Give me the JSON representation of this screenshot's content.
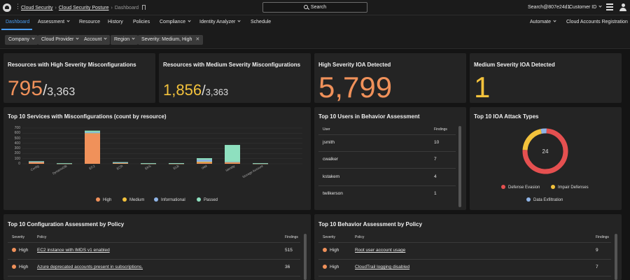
{
  "topbar": {
    "breadcrumb": [
      "Cloud Security",
      "Cloud Security Posture",
      "Dashboard"
    ],
    "search_label": "Search",
    "user": "Search@807e24d1",
    "customer_label": "Customer ID"
  },
  "nav": {
    "tabs": [
      "Dashboard",
      "Assessment",
      "Resource",
      "History",
      "Policies",
      "Compliance",
      "Identity Analyzer",
      "Schedule"
    ],
    "right": [
      "Automate",
      "Cloud Accounts Registration"
    ]
  },
  "filters": [
    "Company",
    "Cloud Provider",
    "Account",
    "Region",
    "Severity: Medium, High"
  ],
  "kpis": {
    "high_misconfig": {
      "title": "Resources with High Severity Misconfigurations",
      "value": "795",
      "total": "3,363",
      "color": "#f0915a"
    },
    "medium_misconfig": {
      "title": "Resources with Medium Severity Misconfigurations",
      "value": "1,856",
      "total": "3,363",
      "color": "#f3c23c"
    },
    "high_ioa": {
      "title": "High Severity IOA Detected",
      "value": "5,799",
      "color": "#f0915a"
    },
    "medium_ioa": {
      "title": "Medium Severity IOA Detected",
      "value": "1",
      "color": "#f3c23c"
    }
  },
  "services_chart": {
    "title": "Top 10 Services with Misconfigurations (count by resource)",
    "chart_data": {
      "type": "bar",
      "stacked": true,
      "categories": [
        "Config",
        "DynamoDB",
        "EC2",
        "ECR",
        "EKS",
        "ELB",
        "IAM",
        "Identity",
        "Storage Account",
        ""
      ],
      "y_ticks": [
        "700",
        "600",
        "500",
        "400",
        "300",
        "200",
        "100",
        "0"
      ],
      "ylim": [
        0,
        700
      ],
      "series": [
        {
          "name": "High",
          "color": "#f0915a",
          "values": [
            30,
            5,
            590,
            15,
            5,
            5,
            25,
            25,
            5,
            0
          ]
        },
        {
          "name": "Medium",
          "color": "#f3c23c",
          "values": [
            8,
            2,
            10,
            5,
            2,
            3,
            15,
            10,
            2,
            0
          ]
        },
        {
          "name": "Informational",
          "color": "#8fb4e6",
          "values": [
            2,
            1,
            20,
            3,
            1,
            1,
            40,
            5,
            1,
            0
          ]
        },
        {
          "name": "Passed",
          "color": "#8ee0bf",
          "values": [
            10,
            3,
            30,
            10,
            4,
            4,
            30,
            330,
            4,
            0
          ]
        }
      ],
      "legend_position": "bottom"
    }
  },
  "users_table": {
    "title": "Top 10 Users in Behavior Assessment",
    "col_user": "User",
    "col_findings": "Findings",
    "rows": [
      {
        "user": "jsmith",
        "findings": "10"
      },
      {
        "user": "cwalker",
        "findings": "7"
      },
      {
        "user": "kstakem",
        "findings": "4"
      },
      {
        "user": "twilkerson",
        "findings": "1"
      }
    ]
  },
  "ioa_types": {
    "title": "Top 10 IOA Attack Types",
    "chart_data": {
      "type": "pie",
      "donut": true,
      "center_label": "24",
      "slices": [
        {
          "label": "Defense Evasion",
          "value": 18,
          "color": "#e55050"
        },
        {
          "label": "Impair Defenses",
          "value": 5,
          "color": "#f3c23c"
        },
        {
          "label": "Data Exfiltration",
          "value": 1,
          "color": "#8fb4e6"
        }
      ]
    }
  },
  "config_policy": {
    "title": "Top 10 Configuration Assessment by Policy",
    "col_sev": "Severity",
    "col_policy": "Policy",
    "col_findings": "Findings",
    "rows": [
      {
        "severity": "High",
        "policy": "EC2 instance with IMDS v1 enabled",
        "findings": "515"
      },
      {
        "severity": "High",
        "policy": "Azure deprecated accounts present in subscriptions.",
        "findings": "36"
      }
    ]
  },
  "behavior_policy": {
    "title": "Top 10 Behavior Assessment by Policy",
    "col_sev": "Severity",
    "col_policy": "Policy",
    "col_findings": "Findings",
    "rows": [
      {
        "severity": "High",
        "policy": "Root user account usage",
        "findings": "9"
      },
      {
        "severity": "High",
        "policy": "CloudTrail logging disabled",
        "findings": "7"
      }
    ]
  },
  "colors": {
    "high": "#f0915a",
    "accent": "#4a9cf0"
  }
}
